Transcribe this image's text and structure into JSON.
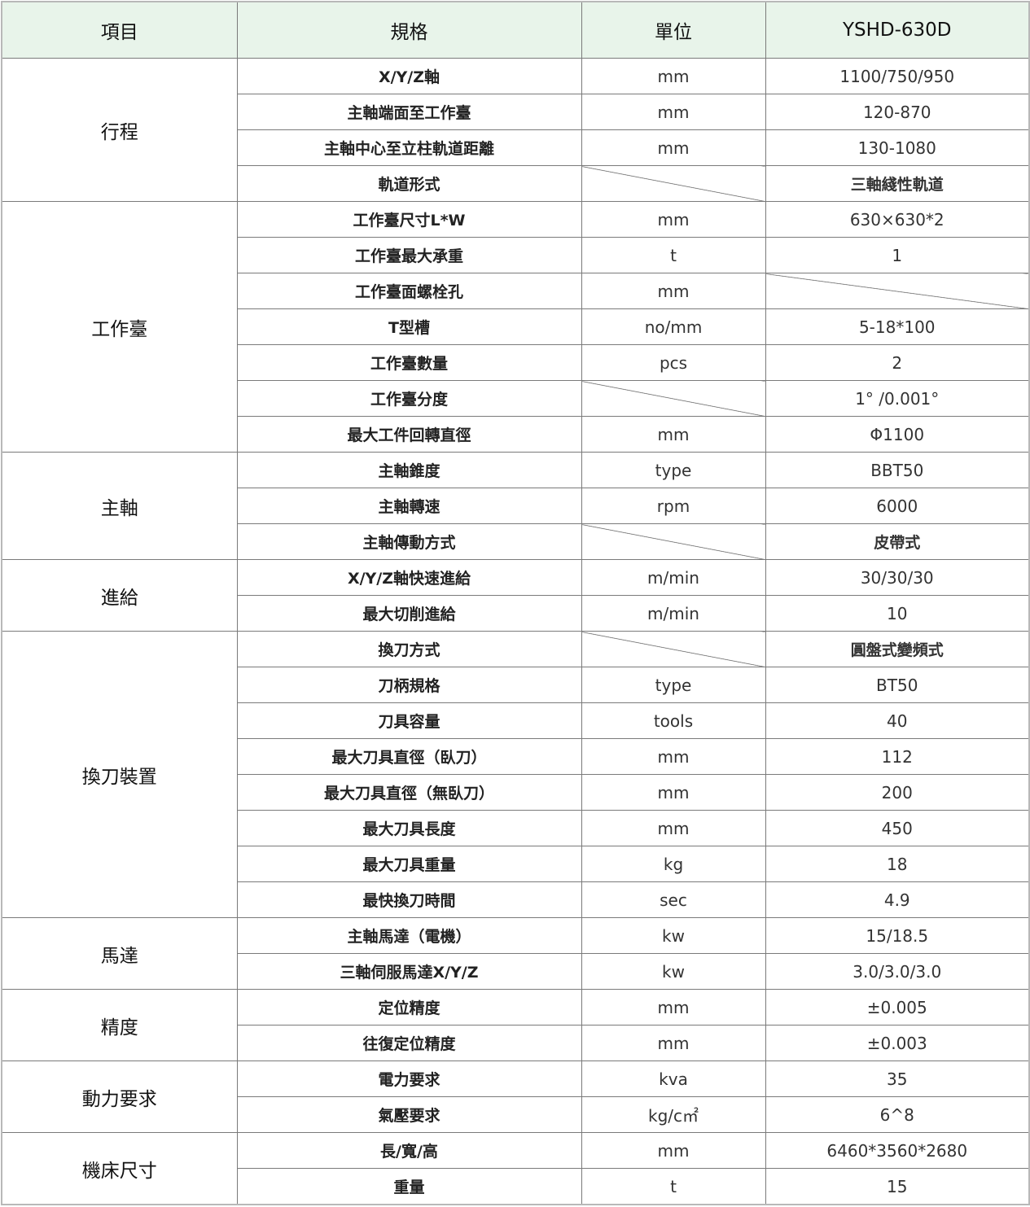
{
  "header": {
    "item": "項目",
    "spec": "規格",
    "unit": "單位",
    "model": "YSHD-630D"
  },
  "groups": [
    {
      "name": "行程",
      "rows": [
        {
          "spec": "X/Y/Z軸",
          "unit": "mm",
          "value": "1100/750/950"
        },
        {
          "spec": "主軸端面至工作臺",
          "unit": "mm",
          "value": "120-870"
        },
        {
          "spec": "主軸中心至立柱軌道距離",
          "unit": "mm",
          "value": "130-1080"
        },
        {
          "spec": "軌道形式",
          "unit": null,
          "value": "三軸綫性軌道"
        }
      ]
    },
    {
      "name": "工作臺",
      "rows": [
        {
          "spec": "工作臺尺寸L*W",
          "unit": "mm",
          "value": "630×630*2"
        },
        {
          "spec": "工作臺最大承重",
          "unit": "t",
          "value": "1"
        },
        {
          "spec": "工作臺面螺栓孔",
          "unit": "mm",
          "value": null
        },
        {
          "spec": "T型槽",
          "unit": "no/mm",
          "value": "5-18*100"
        },
        {
          "spec": "工作臺數量",
          "unit": "pcs",
          "value": "2"
        },
        {
          "spec": "工作臺分度",
          "unit": null,
          "value": "1°  /0.001°"
        },
        {
          "spec": "最大工件回轉直徑",
          "unit": "mm",
          "value": "Φ1100"
        }
      ]
    },
    {
      "name": "主軸",
      "rows": [
        {
          "spec": "主軸錐度",
          "unit": "type",
          "value": "BBT50"
        },
        {
          "spec": "主軸轉速",
          "unit": "rpm",
          "value": "6000"
        },
        {
          "spec": "主軸傳動方式",
          "unit": null,
          "value": "皮帶式"
        }
      ]
    },
    {
      "name": "進給",
      "rows": [
        {
          "spec": "X/Y/Z軸快速進給",
          "unit": "m/min",
          "value": "30/30/30"
        },
        {
          "spec": "最大切削進給",
          "unit": "m/min",
          "value": "10"
        }
      ]
    },
    {
      "name": "換刀裝置",
      "rows": [
        {
          "spec": "換刀方式",
          "unit": null,
          "value": "圓盤式變頻式"
        },
        {
          "spec": "刀柄規格",
          "unit": "type",
          "value": "BT50"
        },
        {
          "spec": "刀具容量",
          "unit": "tools",
          "value": "40"
        },
        {
          "spec": "最大刀具直徑（臥刀）",
          "unit": "mm",
          "value": "112"
        },
        {
          "spec": "最大刀具直徑（無臥刀）",
          "unit": "mm",
          "value": "200"
        },
        {
          "spec": "最大刀具長度",
          "unit": "mm",
          "value": "450"
        },
        {
          "spec": "最大刀具重量",
          "unit": "kg",
          "value": "18"
        },
        {
          "spec": "最快換刀時間",
          "unit": "sec",
          "value": "4.9"
        }
      ]
    },
    {
      "name": "馬達",
      "rows": [
        {
          "spec": "主軸馬達（電機）",
          "unit": "kw",
          "value": "15/18.5"
        },
        {
          "spec": "三軸伺服馬達X/Y/Z",
          "unit": "kw",
          "value": "3.0/3.0/3.0"
        }
      ]
    },
    {
      "name": "精度",
      "rows": [
        {
          "spec": "定位精度",
          "unit": "mm",
          "value": "±0.005"
        },
        {
          "spec": "往復定位精度",
          "unit": "mm",
          "value": "±0.003"
        }
      ]
    },
    {
      "name": "動力要求",
      "rows": [
        {
          "spec": "電力要求",
          "unit": "kva",
          "value": "35"
        },
        {
          "spec": "氣壓要求",
          "unit": "kg/c㎡",
          "value": "6^8"
        }
      ]
    },
    {
      "name": "機床尺寸",
      "rows": [
        {
          "spec": "長/寬/高",
          "unit": "mm",
          "value": "6460*3560*2680"
        },
        {
          "spec": "重量",
          "unit": "t",
          "value": "15"
        }
      ]
    }
  ]
}
